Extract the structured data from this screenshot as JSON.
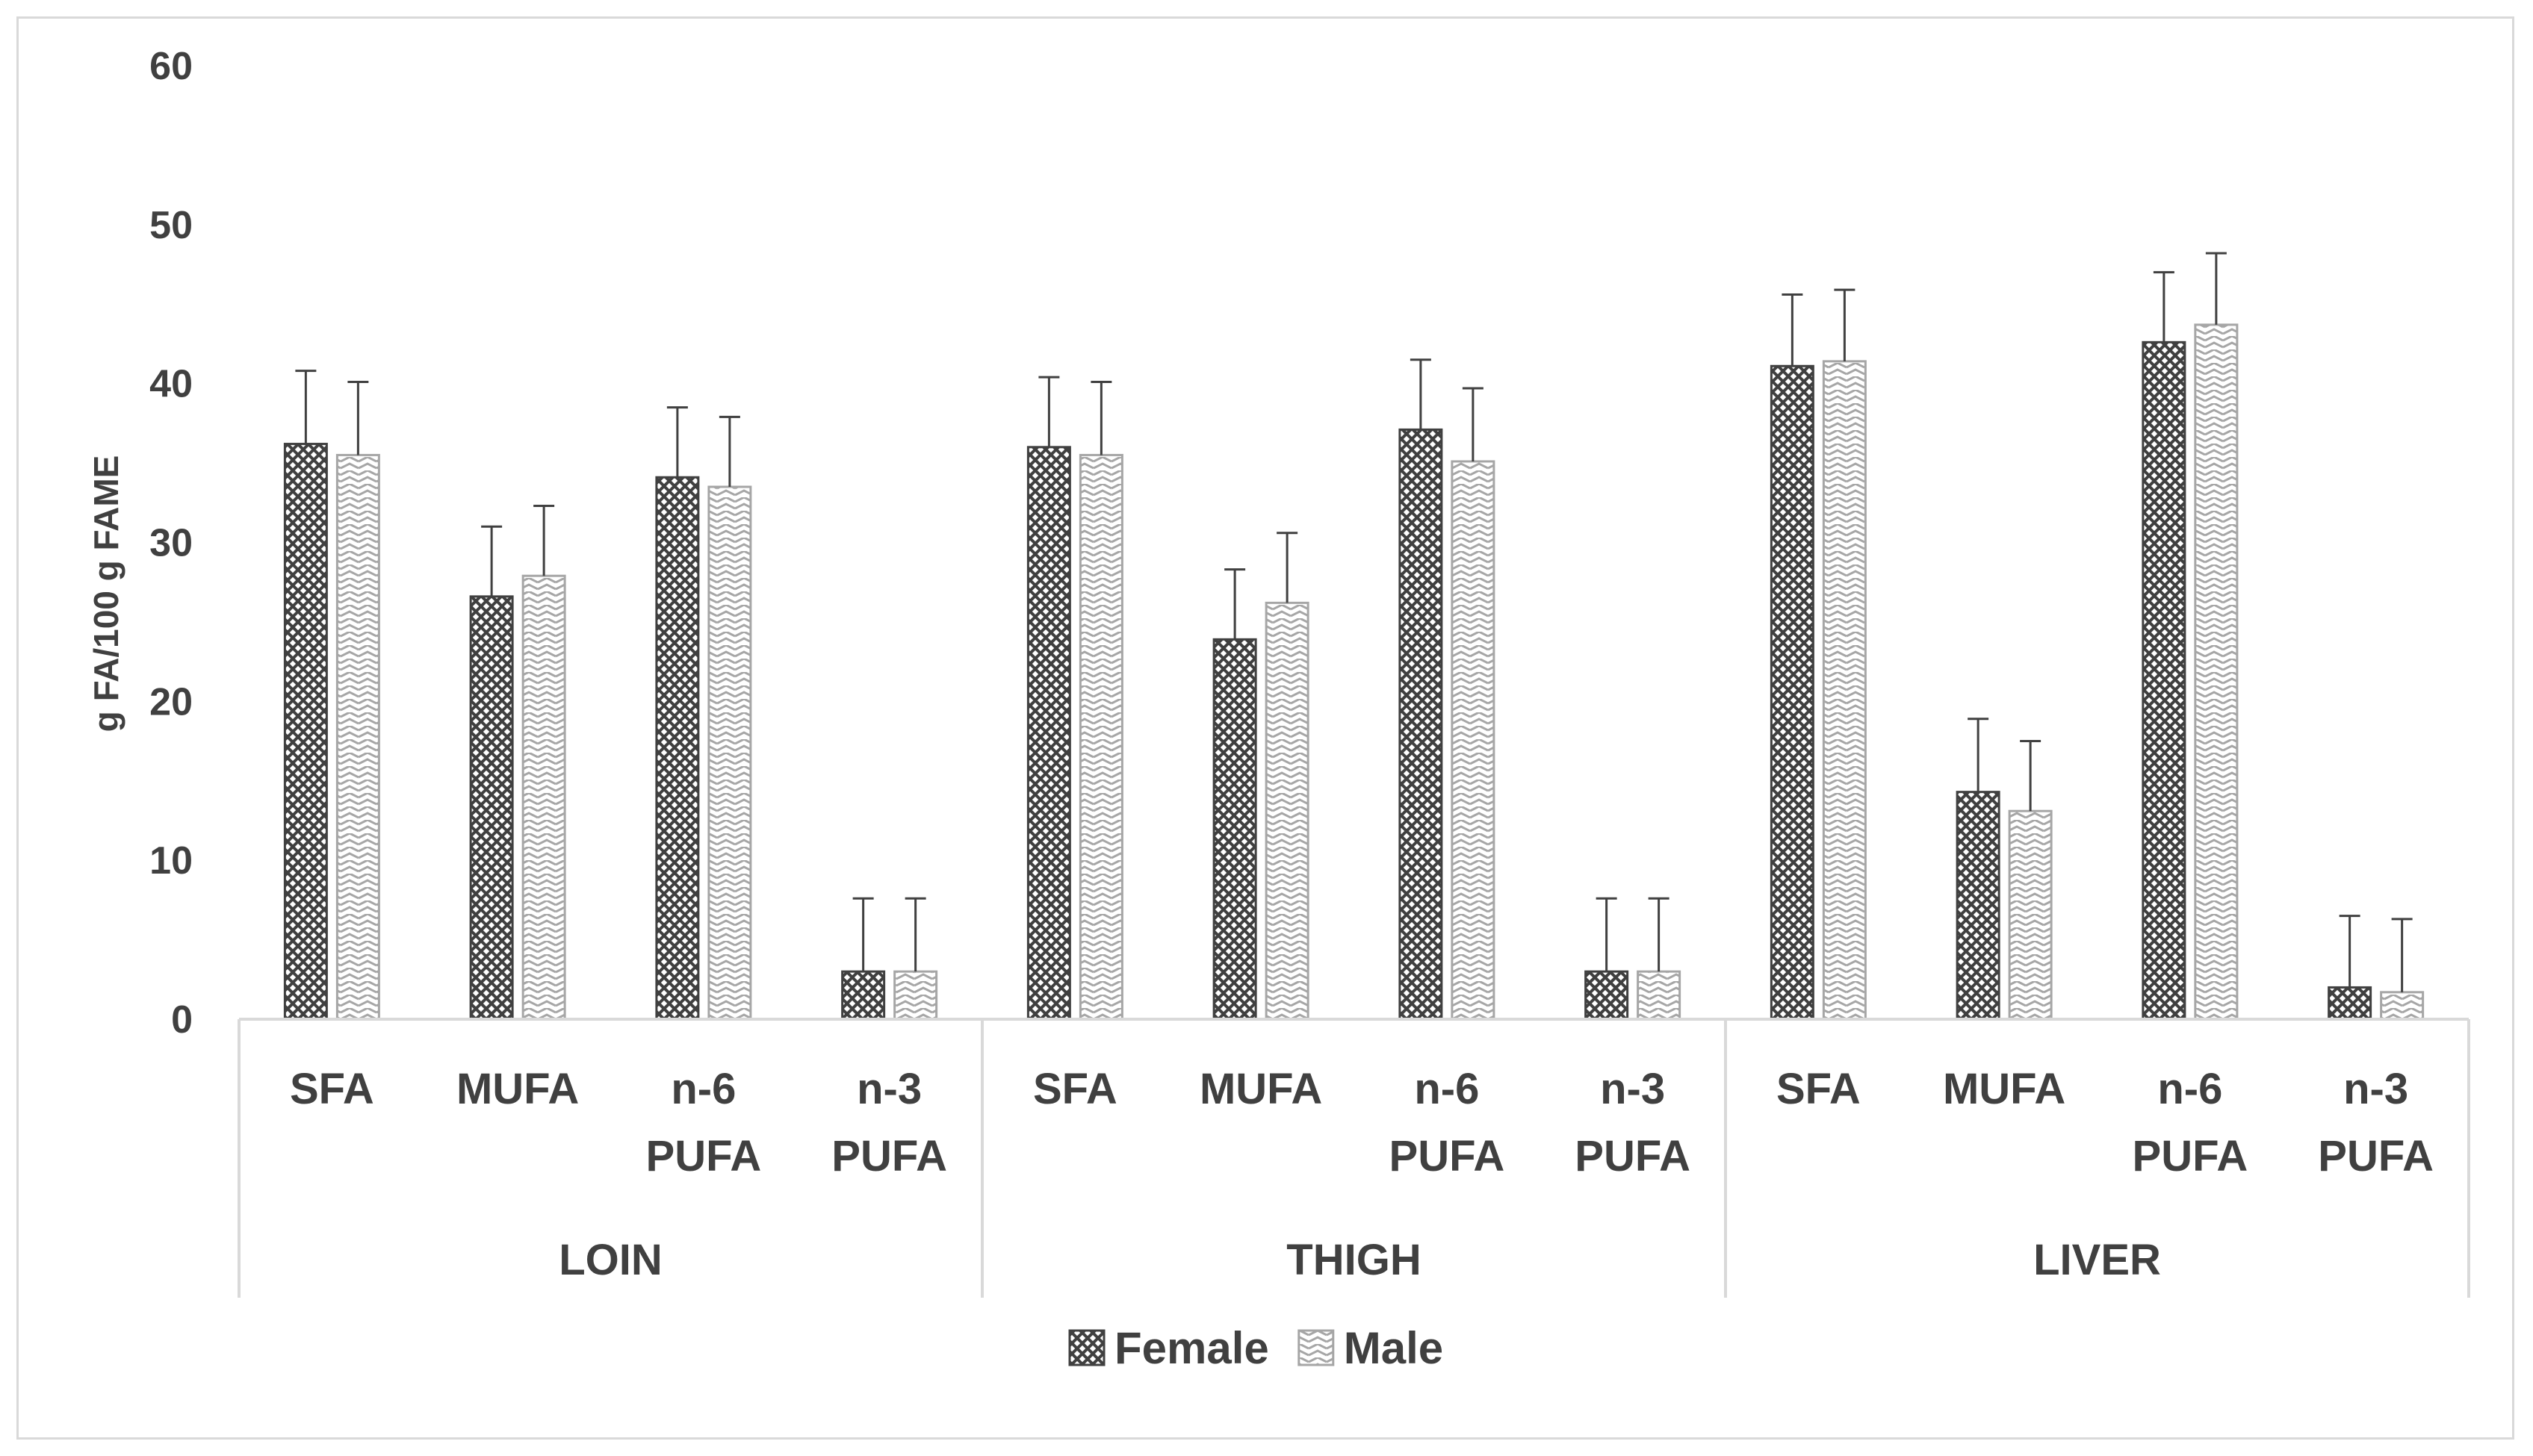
{
  "chart_data": {
    "type": "bar",
    "title": "",
    "xlabel": "",
    "ylabel": "g FA/100 g FAME",
    "ylim": [
      0,
      60
    ],
    "yticks": [
      0,
      10,
      20,
      30,
      40,
      50,
      60
    ],
    "grid": false,
    "legend_position": "bottom",
    "groups": [
      {
        "name": "LOIN",
        "categories": [
          [
            "SFA"
          ],
          [
            "MUFA"
          ],
          [
            "n-6",
            "PUFA"
          ],
          [
            "n-3",
            "PUFA"
          ]
        ]
      },
      {
        "name": "THIGH",
        "categories": [
          [
            "SFA"
          ],
          [
            "MUFA"
          ],
          [
            "n-6",
            "PUFA"
          ],
          [
            "n-3",
            "PUFA"
          ]
        ]
      },
      {
        "name": "LIVER",
        "categories": [
          [
            "SFA"
          ],
          [
            "MUFA"
          ],
          [
            "n-6",
            "PUFA"
          ],
          [
            "n-3",
            "PUFA"
          ]
        ]
      }
    ],
    "series": [
      {
        "name": "Female",
        "pattern": "crosshatch",
        "color": "#404040",
        "values": [
          36.2,
          26.6,
          34.1,
          3.0,
          36.0,
          23.9,
          37.1,
          3.0,
          41.1,
          14.3,
          42.6,
          2.0
        ],
        "errors": [
          4.6,
          4.4,
          4.4,
          4.6,
          4.4,
          4.4,
          4.4,
          4.6,
          4.5,
          4.6,
          4.4,
          4.5
        ]
      },
      {
        "name": "Male",
        "pattern": "zigzag",
        "color": "#a6a6a6",
        "values": [
          35.5,
          27.9,
          33.5,
          3.0,
          35.5,
          26.2,
          35.1,
          3.0,
          41.4,
          13.1,
          43.7,
          1.7
        ],
        "errors": [
          4.6,
          4.4,
          4.4,
          4.6,
          4.6,
          4.4,
          4.6,
          4.6,
          4.5,
          4.4,
          4.5,
          4.6
        ]
      }
    ]
  }
}
